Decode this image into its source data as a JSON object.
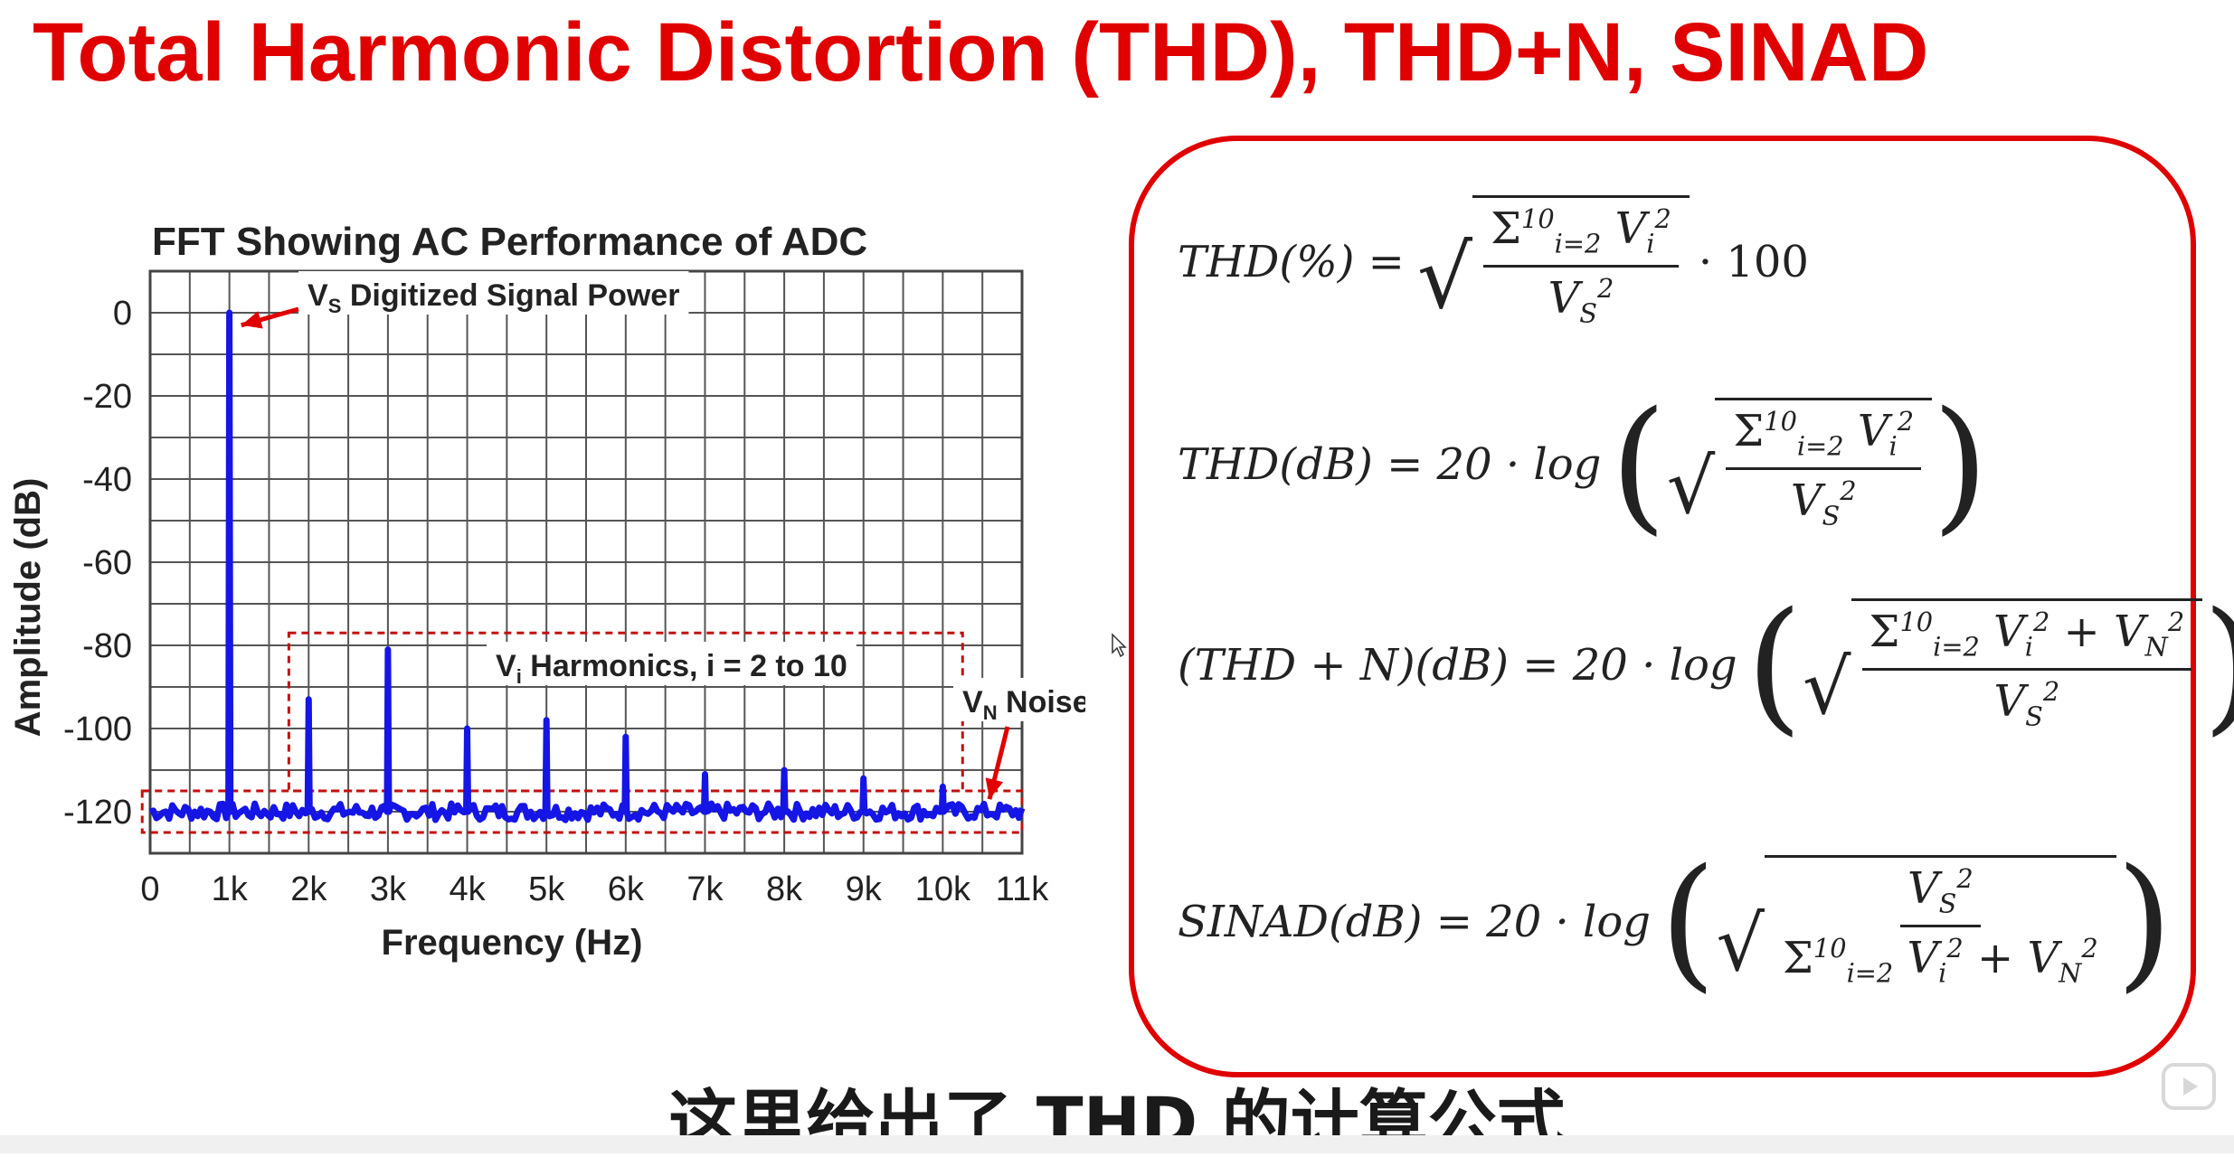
{
  "slide": {
    "title": "Total Harmonic Distortion (THD), THD+N, SINAD",
    "subtitle": "这里给出了 THD 的计算公式"
  },
  "chart_data": {
    "type": "line",
    "title": "FFT Showing AC Performance of ADC",
    "xlabel": "Frequency (Hz)",
    "ylabel": "Amplitude (dB)",
    "xlim": [
      0,
      11000
    ],
    "ylim": [
      -130,
      10
    ],
    "x_ticks": [
      "0",
      "1k",
      "2k",
      "3k",
      "4k",
      "5k",
      "6k",
      "7k",
      "8k",
      "9k",
      "10k",
      "11k"
    ],
    "y_ticks": [
      "0",
      "-20",
      "-40",
      "-60",
      "-80",
      "-100",
      "-120"
    ],
    "grid": true,
    "series": [
      {
        "color": "#1515e6",
        "noise_floor_db": -120,
        "peaks": [
          {
            "x": 1000,
            "y": 0
          },
          {
            "x": 2000,
            "y": -93
          },
          {
            "x": 3000,
            "y": -81
          },
          {
            "x": 4000,
            "y": -100
          },
          {
            "x": 5000,
            "y": -98
          },
          {
            "x": 6000,
            "y": -102
          },
          {
            "x": 7000,
            "y": -111
          },
          {
            "x": 8000,
            "y": -110
          },
          {
            "x": 9000,
            "y": -112
          },
          {
            "x": 10000,
            "y": -114
          }
        ]
      }
    ],
    "annotations": {
      "signal_main": "V",
      "signal_sub": "S",
      "signal_text": " Digitized Signal Power",
      "harmonics_main": "V",
      "harmonics_sub": "i",
      "harmonics_text": " Harmonics, i = 2 to 10",
      "noise_main": "V",
      "noise_sub": "N",
      "noise_text": " Noise"
    }
  },
  "colors": {
    "accent": "#e00000",
    "trace": "#1515e6",
    "grid": "#555555"
  },
  "equations": {
    "thd_percent_lhs": "THD(%) =",
    "thd_percent_tail": "· 100",
    "thd_db_lhs": "THD(dB) = 20 · log",
    "thdn_db_lhs": "(THD + N)(dB) = 20 · log",
    "sinad_db_lhs": "SINAD(dB) = 20 · log",
    "sum_text": "Σ",
    "sum_upper": "10",
    "sum_lower": "i=2",
    "vi": "V",
    "vi_sub": "i",
    "vs": "V",
    "vs_sub": "S",
    "vn": "V",
    "vn_sub": "N",
    "sq": "2",
    "plus": " + "
  },
  "icons": [
    "play-icon",
    "cursor-icon"
  ]
}
